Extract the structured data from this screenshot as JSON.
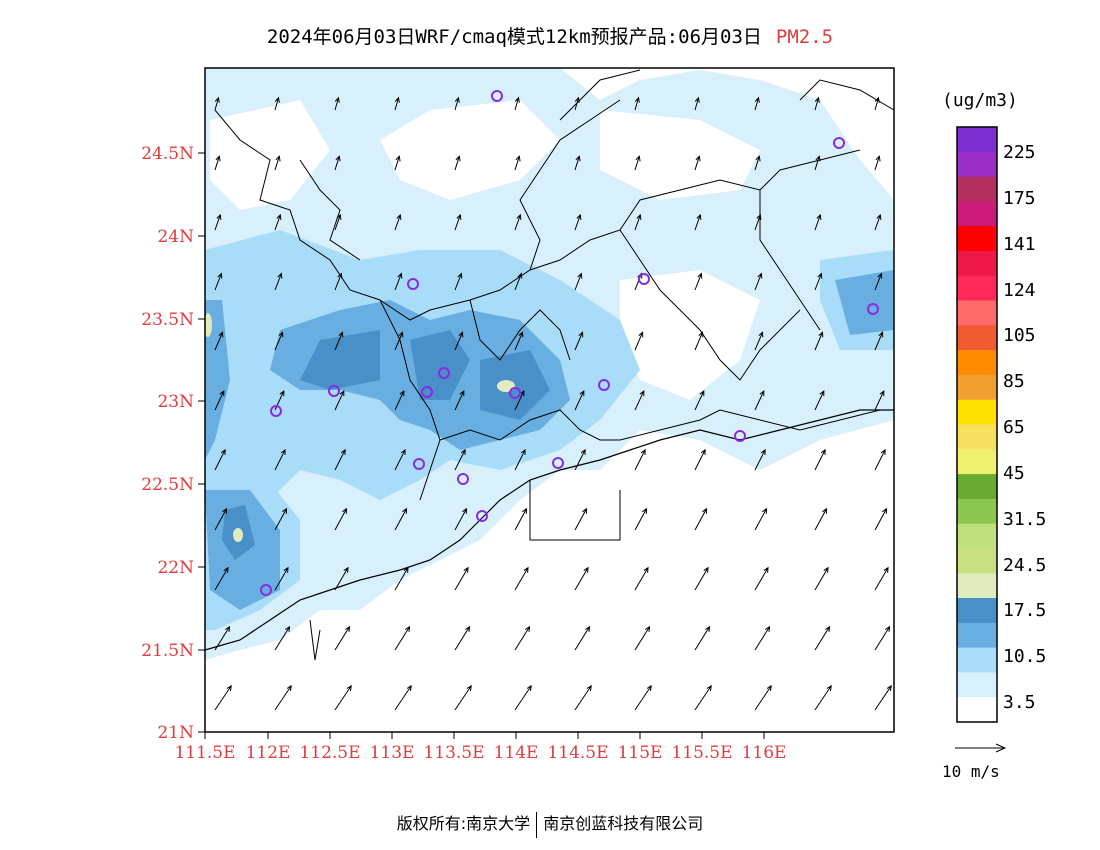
{
  "title": {
    "main": "2024年06月03日WRF/cmaq模式12km预报产品:06月03日",
    "pollutant": "PM2.5"
  },
  "axes": {
    "lat_labels": [
      "24.5N",
      "24N",
      "23.5N",
      "23N",
      "22.5N",
      "22N",
      "21.5N",
      "21N"
    ],
    "lon_labels": [
      "111.5E",
      "112E",
      "112.5E",
      "113E",
      "113.5E",
      "114E",
      "114.5E",
      "115E",
      "115.5E",
      "116E"
    ]
  },
  "colorbar": {
    "unit": "(ug/m3)",
    "labels": [
      "225",
      "175",
      "141",
      "124",
      "105",
      "85",
      "65",
      "45",
      "31.5",
      "24.5",
      "17.5",
      "10.5",
      "3.5"
    ],
    "colors_top_to_bottom": [
      "#7b2fd0",
      "#9c2fc8",
      "#b23060",
      "#cc1a7a",
      "#ff0000",
      "#f0184a",
      "#ff2a5a",
      "#ff6a6a",
      "#f05a30",
      "#ff8c00",
      "#f0a030",
      "#ffe000",
      "#f5e060",
      "#f0f070",
      "#6aaa30",
      "#8cc850",
      "#c0e080",
      "#c8e080",
      "#e0ecc0",
      "#4a90c8",
      "#68aee0",
      "#a8dcf8",
      "#d8f0fc",
      "#ffffff"
    ]
  },
  "wind_legend": {
    "label": "10 m/s"
  },
  "footer": {
    "left": "版权所有:南京大学",
    "right": "南京创蓝科技有限公司"
  }
}
